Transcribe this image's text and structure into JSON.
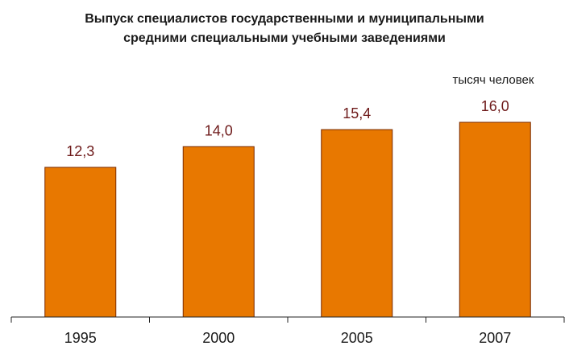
{
  "chart_data": {
    "type": "bar",
    "title": "Выпуск специалистов государственными и муниципальными",
    "subtitle": "средними специальными учебными заведениями",
    "unit_label": "тысяч человек",
    "categories": [
      "1995",
      "2000",
      "2005",
      "2007"
    ],
    "values": [
      12.3,
      14.0,
      15.4,
      16.0
    ],
    "value_labels": [
      "12,3",
      "14,0",
      "15,4",
      "16,0"
    ],
    "ylim": [
      0,
      18
    ],
    "grid": false,
    "colors": {
      "bar_fill": "#e87800",
      "bar_stroke": "#7a2a00",
      "value_text": "#6e1a1a",
      "axis": "#222222"
    }
  }
}
